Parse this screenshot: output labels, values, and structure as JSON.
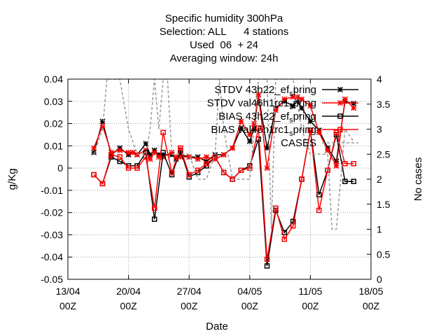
{
  "chart_data": {
    "type": "line",
    "title_lines": [
      "Specific humidity 300hPa",
      "Selection: ALL      4 stations",
      "Used  06  + 24",
      "Averaging window: 24h"
    ],
    "xlabel": "Date",
    "ylabel": "g/Kg",
    "y2label": "No cases",
    "ylim": [
      -0.05,
      0.04
    ],
    "y2lim": [
      0,
      4
    ],
    "xlim": [
      0,
      35
    ],
    "yticks": [
      "-0.05",
      "-0.04",
      "-0.03",
      "-0.02",
      "-0.01",
      "0",
      "0.01",
      "0.02",
      "0.03",
      "0.04"
    ],
    "y2ticks": [
      "0",
      "0.5",
      "1",
      "1.5",
      "2",
      "2.5",
      "3",
      "3.5",
      "4"
    ],
    "xticks": [
      {
        "day": 0,
        "line1": "13/04",
        "line2": "00Z"
      },
      {
        "day": 7,
        "line1": "20/04",
        "line2": "00Z"
      },
      {
        "day": 14,
        "line1": "27/04",
        "line2": "00Z"
      },
      {
        "day": 21,
        "line1": "04/05",
        "line2": "00Z"
      },
      {
        "day": 28,
        "line1": "11/05",
        "line2": "00Z"
      },
      {
        "day": 35,
        "line1": "18/05",
        "line2": "00Z"
      }
    ],
    "grid": true,
    "legend_position": "top-right",
    "series": [
      {
        "name": "STDV 43h22_ef_spring",
        "legend_text": "STDV 43h22_ef",
        "legend_sub": "s",
        "legend_tail": "pring",
        "color": "#000000",
        "marker": "star",
        "x": [
          3,
          4,
          5,
          6,
          7,
          7.5,
          8,
          9,
          9.5,
          10,
          10.5,
          11,
          12,
          12.5,
          13,
          14,
          15,
          16,
          17,
          18,
          19,
          20,
          21,
          21.5,
          22,
          23,
          24,
          25,
          26,
          26.5,
          27,
          28,
          29,
          30,
          31,
          32,
          33
        ],
        "y": [
          0.007,
          0.021,
          0.006,
          0.009,
          0.006,
          0.007,
          0.006,
          0.011,
          0.006,
          0.008,
          0.006,
          0.006,
          0.006,
          0.004,
          0.006,
          0.005,
          0.005,
          0.003,
          0.006,
          0.006,
          0.009,
          0.018,
          0.012,
          0.018,
          0.033,
          0.009,
          0.027,
          0.03,
          0.028,
          0.03,
          0.027,
          0.021,
          0.017,
          0.009,
          0.003,
          0.03,
          0.029
        ]
      },
      {
        "name": "STDV val46h1rc1_spring",
        "legend_text": "STDV val46h1rc1",
        "legend_sub": "s",
        "legend_tail": "pring",
        "color": "#ff0000",
        "marker": "star",
        "x": [
          3,
          4,
          5,
          6,
          7,
          7.5,
          8,
          9,
          9.5,
          10,
          10.5,
          11,
          12,
          12.5,
          13,
          14,
          15,
          16,
          17,
          18,
          19,
          20,
          21,
          21.5,
          22,
          23,
          24,
          25,
          26,
          26.5,
          27,
          28,
          29,
          30,
          31,
          32,
          33
        ],
        "y": [
          0.009,
          0.019,
          0.007,
          0.008,
          0.007,
          0.007,
          0.006,
          0.008,
          0.004,
          0.007,
          0.005,
          0.005,
          0.007,
          0.005,
          0.005,
          0.005,
          0.004,
          0.005,
          0.004,
          0.006,
          0.009,
          0.021,
          0.015,
          0.02,
          0.033,
          0.0,
          0.026,
          0.031,
          0.032,
          0.032,
          0.031,
          0.028,
          0.016,
          0.008,
          0.001,
          0.031,
          0.027
        ]
      },
      {
        "name": "BIAS 43h22_ef_spring",
        "legend_text": "BIAS 43h22_ef",
        "legend_sub": "s",
        "legend_tail": "pring",
        "color": "#000000",
        "marker": "square",
        "x": [
          3,
          4,
          5,
          6,
          7,
          8,
          9,
          10,
          11,
          12,
          13,
          14,
          15,
          16,
          17,
          18,
          19,
          20,
          21,
          22,
          23,
          24,
          25,
          26,
          27,
          28,
          29,
          30,
          31,
          32,
          33
        ],
        "y": [
          -0.003,
          -0.007,
          0.005,
          0.003,
          0.001,
          0.001,
          0.007,
          -0.023,
          0.007,
          -0.003,
          0.008,
          -0.004,
          -0.002,
          0.001,
          0.005,
          -0.002,
          -0.005,
          -0.001,
          0.001,
          0.013,
          -0.044,
          -0.019,
          -0.029,
          -0.024,
          -0.005,
          0.017,
          -0.012,
          -0.001,
          0.015,
          -0.006,
          -0.006
        ]
      },
      {
        "name": "BIAS val46h1rc1_spring",
        "legend_text": "BIAS val46h1rc1",
        "legend_sub": "s",
        "legend_tail": "pring",
        "color": "#ff0000",
        "marker": "square",
        "x": [
          3,
          4,
          5,
          6,
          7,
          8,
          9,
          10,
          11,
          12,
          13,
          14,
          15,
          16,
          17,
          18,
          19,
          20,
          21,
          22,
          23,
          24,
          25,
          26,
          27,
          28,
          29,
          30,
          31,
          32,
          33
        ],
        "y": [
          -0.003,
          -0.007,
          0.006,
          0.005,
          0.0,
          0.0,
          0.005,
          -0.018,
          0.016,
          -0.002,
          0.009,
          -0.003,
          -0.001,
          0.002,
          0.005,
          -0.002,
          -0.005,
          -0.001,
          0.0,
          0.018,
          -0.041,
          -0.018,
          -0.032,
          -0.026,
          -0.005,
          0.017,
          -0.019,
          -0.001,
          0.016,
          0.002,
          0.002
        ]
      },
      {
        "name": "CASES",
        "legend_text": "CASES",
        "color": "#999999",
        "marker": "none",
        "axis": "y2",
        "x": [
          3,
          4,
          4.5,
          5,
          6,
          7,
          8,
          9,
          9.5,
          10,
          10.5,
          11,
          11.5,
          12,
          13,
          14,
          15,
          15.5,
          16,
          17,
          17.5,
          18,
          19,
          20,
          21,
          22,
          23,
          23.5,
          24,
          25,
          26,
          27,
          28,
          29,
          30,
          30.5,
          31,
          32,
          33
        ],
        "y": [
          2.5,
          3,
          4,
          4,
          4,
          3,
          2.5,
          2.5,
          3,
          4,
          3,
          4,
          4,
          2.5,
          2.5,
          2.5,
          2,
          2,
          2,
          2.5,
          4,
          3,
          2,
          2,
          2,
          4,
          4,
          1,
          4,
          4,
          4,
          3,
          2.5,
          2.5,
          2.5,
          1,
          1,
          3,
          2.75
        ]
      }
    ]
  }
}
